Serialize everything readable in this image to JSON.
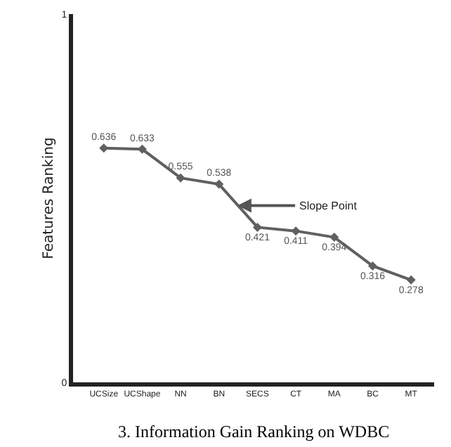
{
  "chart_data": {
    "type": "line",
    "ylabel": "Features Ranking",
    "categories": [
      "UCSize",
      "UCShape",
      "NN",
      "BN",
      "SECS",
      "CT",
      "MA",
      "BC",
      "MT"
    ],
    "values": [
      0.636,
      0.633,
      0.555,
      0.538,
      0.421,
      0.411,
      0.394,
      0.316,
      0.278
    ],
    "color": "#606060",
    "ylim": [
      0,
      1
    ],
    "yticks": [
      0,
      1
    ],
    "grid": false,
    "legend": false,
    "marker": "diamond",
    "line_style": "solid",
    "data_labels": true,
    "annotations": [
      "Slope Point",
      "3. Information Gain Ranking on WDBC"
    ]
  }
}
